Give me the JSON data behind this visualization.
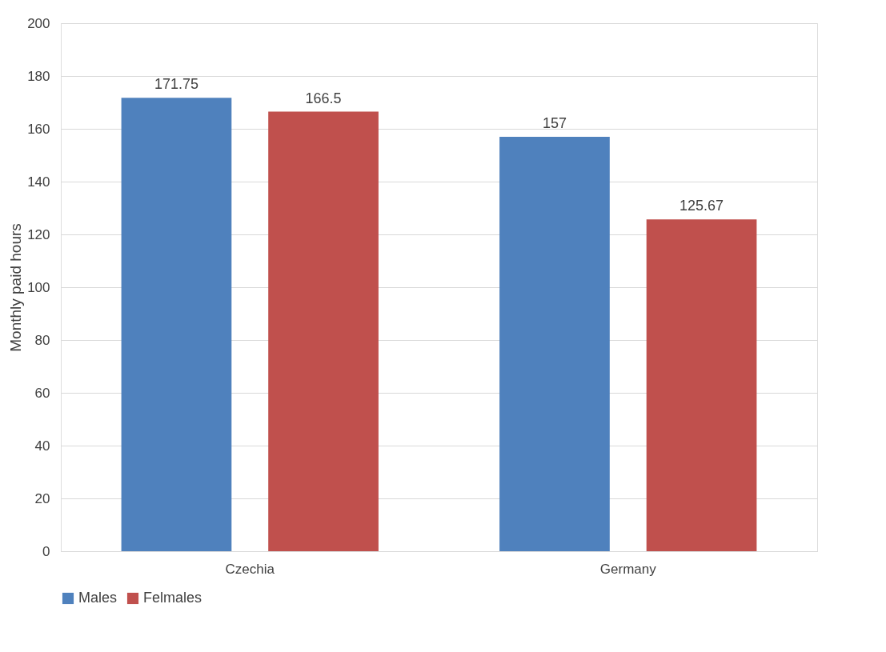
{
  "chart_data": {
    "type": "bar",
    "ylabel": "Monthly paid hours",
    "categories": [
      "Czechia",
      "Germany"
    ],
    "series": [
      {
        "name": "Males",
        "color": "#4f81bd",
        "values": [
          171.75,
          157
        ]
      },
      {
        "name": "Felmales",
        "color": "#c0504d",
        "values": [
          166.5,
          125.67
        ]
      }
    ],
    "ylim": [
      0,
      200
    ],
    "yticks": [
      0,
      20,
      40,
      60,
      80,
      100,
      120,
      140,
      160,
      180,
      200
    ],
    "grid": "y",
    "legend": "bottom",
    "data_labels": true
  }
}
